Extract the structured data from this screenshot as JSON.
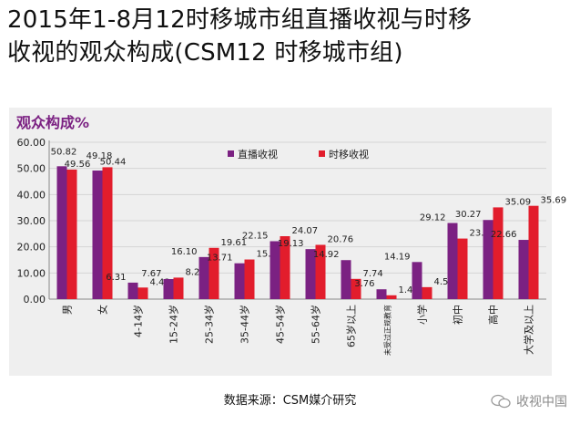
{
  "title_line1": "2015年1-8月12时移城市组直播收视与时移",
  "title_line2": "收视的观众构成(CSM12 时移城市组)",
  "source": "数据来源：CSM媒介研究",
  "watermark": "收视中国",
  "chart_data": {
    "type": "bar",
    "title": "观众构成%",
    "categories": [
      "男",
      "女",
      "4-14岁",
      "15-24岁",
      "25-34岁",
      "35-44岁",
      "45-54岁",
      "55-64岁",
      "65岁以上",
      "未受过正规教育",
      "小学",
      "初中",
      "高中",
      "大学及以上"
    ],
    "series": [
      {
        "name": "直播收视",
        "color": "#7b2182",
        "values": [
          50.82,
          49.18,
          6.31,
          7.67,
          16.1,
          13.71,
          22.15,
          19.13,
          14.92,
          3.76,
          14.19,
          29.12,
          30.27,
          22.66
        ]
      },
      {
        "name": "时移收视",
        "color": "#e21d2c",
        "values": [
          49.56,
          50.44,
          4.43,
          8.23,
          19.61,
          15.16,
          24.07,
          20.76,
          7.74,
          1.47,
          4.58,
          23.17,
          35.09,
          35.69
        ]
      }
    ],
    "labels": {
      "直播收视": [
        "50.82",
        "49.18",
        "6.31",
        "7.67",
        "16.10",
        "13.71",
        "22.15",
        "19.13",
        "14.92",
        "3.76",
        "14.19",
        "29.12",
        "30.27",
        "22.66"
      ],
      "时移收视": [
        "49.56",
        "50.44",
        "4.43",
        "8.23",
        "19.61",
        "15.16",
        "24.07",
        "20.76",
        "7.74",
        "1.47",
        "4.58",
        "23.17",
        "35.09",
        "35.69"
      ]
    },
    "y_ticks": [
      "0.00",
      "10.00",
      "20.00",
      "30.00",
      "40.00",
      "50.00",
      "60.00"
    ],
    "ylim": [
      0,
      60
    ],
    "legend_position": "top-center",
    "title_color": "#7b2182"
  }
}
